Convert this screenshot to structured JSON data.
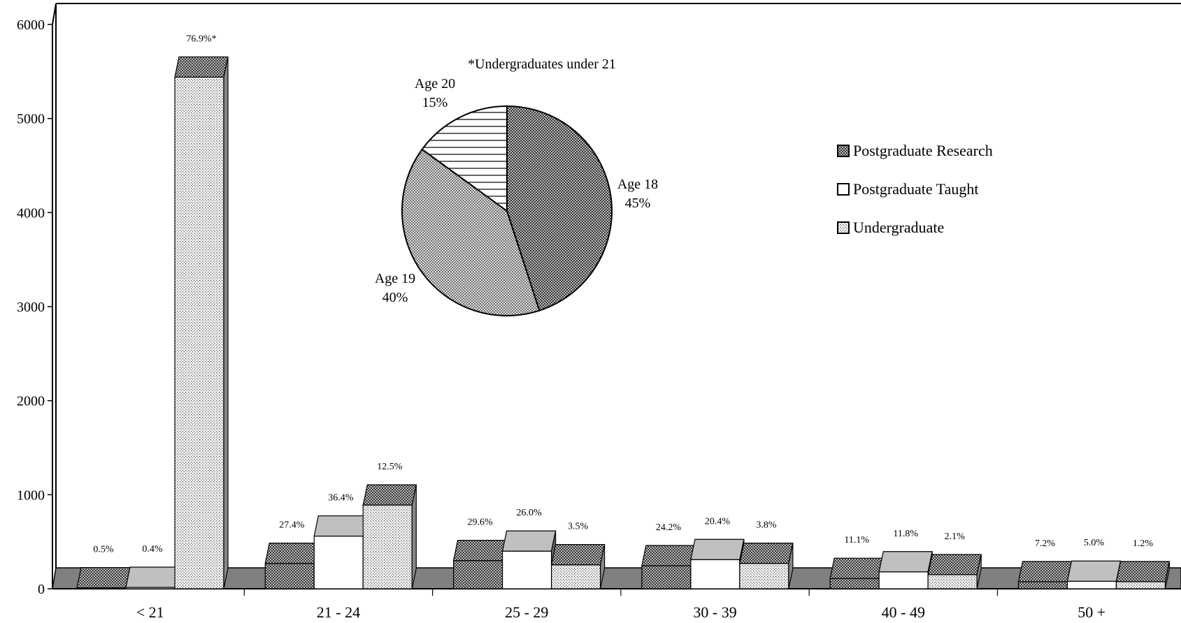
{
  "chart_data": {
    "type": "bar",
    "categories": [
      "< 21",
      "21 - 24",
      "25 - 29",
      "30 - 39",
      "40 - 49",
      "50 +"
    ],
    "series": [
      {
        "name": "Postgraduate Research",
        "values": [
          10,
          270,
          300,
          245,
          110,
          75
        ],
        "labels": [
          "0.5%",
          "27.4%",
          "29.6%",
          "24.2%",
          "11.1%",
          "7.2%"
        ]
      },
      {
        "name": "Postgraduate Taught",
        "values": [
          15,
          560,
          400,
          310,
          180,
          80
        ],
        "labels": [
          "0.4%",
          "36.4%",
          "26.0%",
          "20.4%",
          "11.8%",
          "5.0%"
        ]
      },
      {
        "name": "Undergraduate",
        "values": [
          5440,
          890,
          255,
          270,
          150,
          75
        ],
        "labels": [
          "76.9%*",
          "12.5%",
          "3.5%",
          "3.8%",
          "2.1%",
          "1.2%"
        ]
      }
    ],
    "yticks": [
      "0",
      "1000",
      "2000",
      "3000",
      "4000",
      "5000",
      "6000"
    ],
    "ylim": [
      0,
      6000
    ],
    "legend_position": "right",
    "inset_pie": {
      "title": "*Undergraduates under 21",
      "slices": [
        {
          "label": "Age 18",
          "pct_label": "45%",
          "value": 45
        },
        {
          "label": "Age 19",
          "pct_label": "40%",
          "value": 40
        },
        {
          "label": "Age 20",
          "pct_label": "15%",
          "value": 15
        }
      ]
    }
  }
}
